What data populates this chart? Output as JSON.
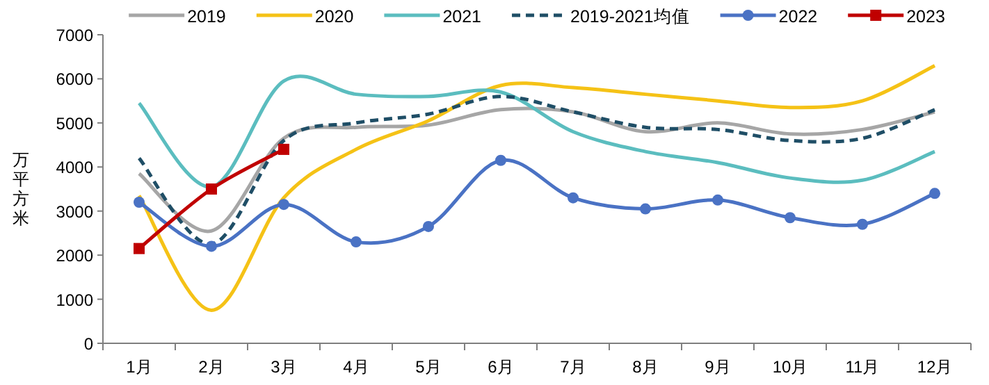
{
  "chart_data": {
    "type": "line",
    "ylabel": "万平方米",
    "categories": [
      "1月",
      "2月",
      "3月",
      "4月",
      "5月",
      "6月",
      "7月",
      "8月",
      "9月",
      "10月",
      "11月",
      "12月"
    ],
    "ylim": [
      0,
      7000
    ],
    "yticks": [
      0,
      1000,
      2000,
      3000,
      4000,
      5000,
      6000,
      7000
    ],
    "grid": false,
    "legend": "top",
    "series": [
      {
        "name": "2019",
        "color": "#a6a6a6",
        "values": [
          3850,
          2550,
          4650,
          4900,
          4950,
          5300,
          5250,
          4800,
          5000,
          4750,
          4850,
          5250
        ]
      },
      {
        "name": "2020",
        "color": "#f5c216",
        "values": [
          3350,
          750,
          3300,
          4400,
          5050,
          5850,
          5800,
          5650,
          5500,
          5350,
          5500,
          6300
        ]
      },
      {
        "name": "2021",
        "color": "#5bbdbf",
        "values": [
          5450,
          3550,
          5950,
          5650,
          5600,
          5700,
          4800,
          4350,
          4100,
          3750,
          3700,
          4350
        ]
      },
      {
        "name": "2019-2021均值",
        "color": "#1f4e66",
        "line_style": "dashed",
        "values": [
          4200,
          2250,
          4600,
          5000,
          5200,
          5600,
          5250,
          4900,
          4850,
          4600,
          4650,
          5300
        ]
      },
      {
        "name": "2022",
        "color": "#4a72c4",
        "marker": "circle",
        "values": [
          3200,
          2200,
          3150,
          2300,
          2650,
          4150,
          3300,
          3050,
          3250,
          2850,
          2700,
          3400
        ]
      },
      {
        "name": "2023",
        "color": "#c00000",
        "marker": "square",
        "values": [
          2150,
          3500,
          4400,
          null,
          null,
          null,
          null,
          null,
          null,
          null,
          null,
          null
        ]
      }
    ]
  }
}
